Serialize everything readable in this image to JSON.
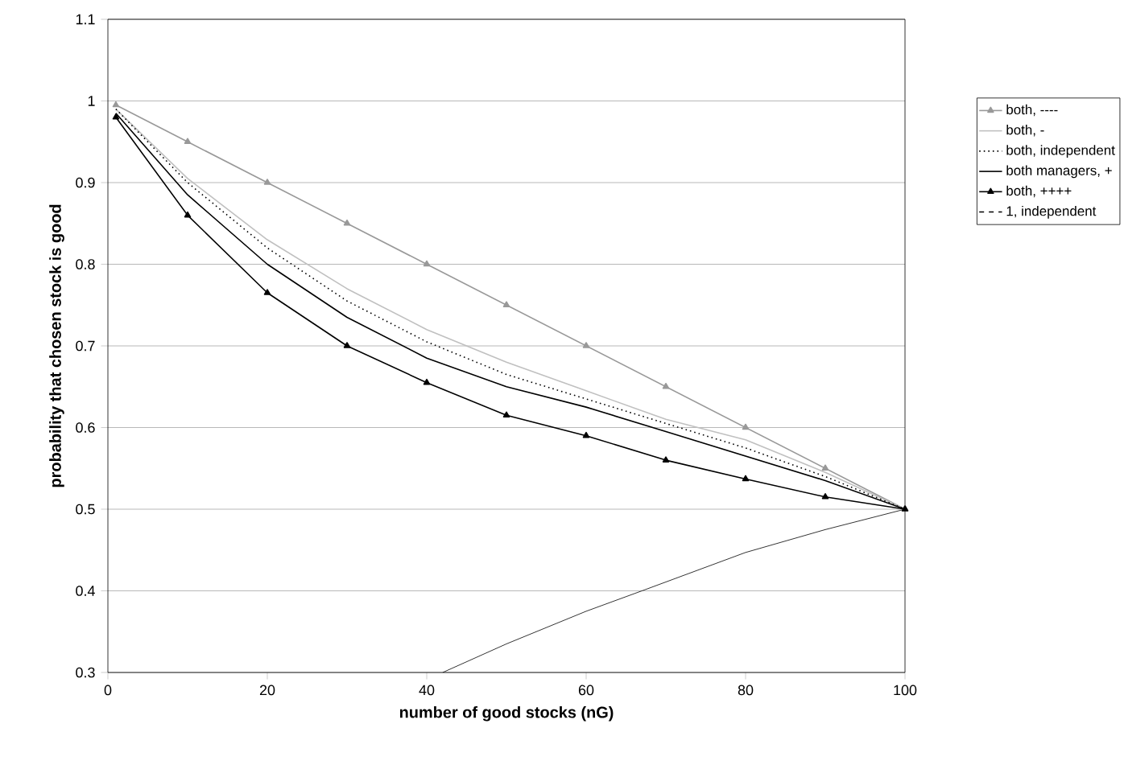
{
  "chart_data": {
    "type": "line",
    "xlabel": "number of good stocks (nG)",
    "ylabel": "probability that chosen stock is good",
    "x": [
      1,
      10,
      20,
      30,
      40,
      50,
      60,
      70,
      80,
      90,
      100
    ],
    "xlim": [
      0,
      100
    ],
    "xticks": [
      0,
      20,
      40,
      60,
      80,
      100
    ],
    "ylim": [
      0.3,
      1.1
    ],
    "yticks": [
      0.3,
      0.4,
      0.5,
      0.6,
      0.7,
      0.8,
      0.9,
      1,
      1.1
    ],
    "grid": "y",
    "legend": "top right",
    "series": [
      {
        "name": "both, ----",
        "color": "#999999",
        "marker": "triangle",
        "line_style": "solid",
        "values": [
          0.995,
          0.95,
          0.9,
          0.85,
          0.8,
          0.75,
          0.7,
          0.65,
          0.6,
          0.55,
          0.5
        ]
      },
      {
        "name": "both, -",
        "color": "#c0c0c0",
        "marker": "none",
        "line_style": "solid",
        "values": [
          0.99,
          0.905,
          0.83,
          0.77,
          0.72,
          0.68,
          0.645,
          0.61,
          0.585,
          0.545,
          0.5
        ]
      },
      {
        "name": "both, independent",
        "color": "#000000",
        "marker": "none",
        "line_style": "dotted",
        "values": [
          0.99,
          0.9,
          0.82,
          0.755,
          0.705,
          0.665,
          0.635,
          0.605,
          0.575,
          0.54,
          0.5
        ]
      },
      {
        "name": "both managers, +",
        "color": "#000000",
        "marker": "none",
        "line_style": "solid",
        "values": [
          0.985,
          0.885,
          0.8,
          0.735,
          0.685,
          0.65,
          0.625,
          0.595,
          0.565,
          0.535,
          0.5
        ]
      },
      {
        "name": "both, ++++",
        "color": "#000000",
        "marker": "triangle",
        "line_style": "solid",
        "values": [
          0.98,
          0.86,
          0.765,
          0.7,
          0.655,
          0.615,
          0.59,
          0.56,
          0.537,
          0.515,
          0.5
        ]
      },
      {
        "name": "1, independent",
        "color": "#000000",
        "marker": "none",
        "line_style": "dashed",
        "values": [
          null,
          null,
          null,
          null,
          null,
          null,
          null,
          null,
          null,
          null,
          null
        ]
      },
      {
        "color": "#000000",
        "marker": "none",
        "line_style": "solid",
        "x": [
          42,
          50,
          60,
          67,
          80,
          90,
          100
        ],
        "values": [
          0.3,
          0.335,
          0.375,
          0.4,
          0.447,
          0.475,
          0.5
        ]
      }
    ]
  }
}
